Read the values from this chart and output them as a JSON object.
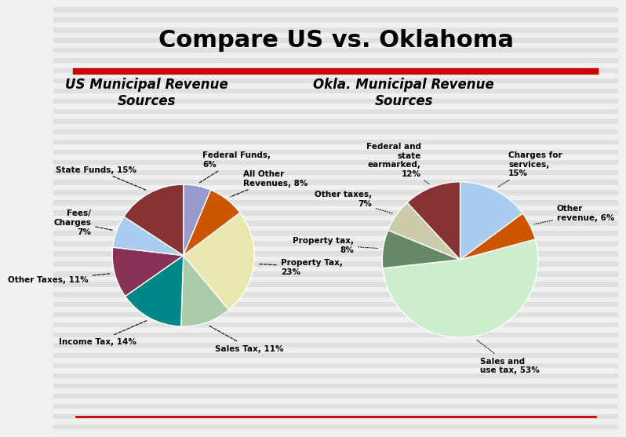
{
  "title": "Compare US vs. Oklahoma",
  "title_fontsize": 22,
  "background_color": "#f0f0f0",
  "stripe_color": "#e0e0e0",
  "divider_color": "#cc0000",
  "left_subtitle": "US Municipal Revenue\nSources",
  "right_subtitle": "Okla. Municipal Revenue\nSources",
  "subtitle_fontsize": 12,
  "us_labels": [
    "Federal Funds,\n6%",
    "All Other\nRevenues, 8%",
    "Property Tax,\n23%",
    "Sales Tax, 11%",
    "Income Tax, 14%",
    "Other Taxes, 11%",
    "Fees/\nCharges\n7%",
    "State Funds, 15%"
  ],
  "us_values": [
    6,
    8,
    23,
    11,
    14,
    11,
    7,
    15
  ],
  "us_colors": [
    "#9999cc",
    "#cc5500",
    "#e8e8b0",
    "#aaccaa",
    "#008888",
    "#883355",
    "#aaccee",
    "#883333"
  ],
  "ok_labels": [
    "Charges for\nservices,\n15%",
    "Other\nrevenue, 6%",
    "Sales and\nuse tax, 53%",
    "Property tax,\n8%",
    "Other taxes,\n7%",
    "Federal and\nstate\nearmarked,\n12%"
  ],
  "ok_values": [
    15,
    6,
    53,
    8,
    7,
    12
  ],
  "ok_colors": [
    "#aaccee",
    "#cc5500",
    "#cceecc",
    "#668866",
    "#ccccaa",
    "#883333"
  ]
}
